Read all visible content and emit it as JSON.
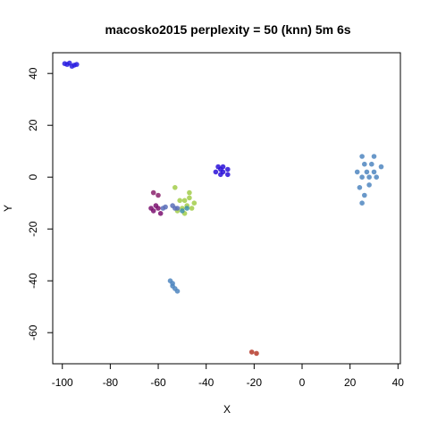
{
  "chart_data": {
    "type": "scatter",
    "title": "macosko2015 perplexity = 50 (knn) 5m 6s",
    "xlabel": "X",
    "ylabel": "Y",
    "xlim": [
      -104,
      41
    ],
    "ylim": [
      -72,
      48
    ],
    "x_ticks": [
      -100,
      -80,
      -60,
      -40,
      -20,
      0,
      20,
      40
    ],
    "y_ticks": [
      40,
      20,
      0,
      -20,
      -40,
      -60
    ],
    "x_tick_labels": [
      "-100",
      "-80",
      "-60",
      "-40",
      "-20",
      "0",
      "20",
      "40"
    ],
    "y_tick_labels": [
      "40",
      "20",
      "0",
      "-20",
      "-40",
      "-60"
    ],
    "grid": false,
    "legend": "none",
    "clusters": [
      {
        "color": "#4f86c0",
        "points": [
          [
            25,
            8
          ],
          [
            30,
            8
          ],
          [
            33,
            4
          ],
          [
            31,
            0
          ],
          [
            28,
            -3
          ],
          [
            26,
            -7
          ],
          [
            25,
            -10
          ],
          [
            24,
            -4
          ],
          [
            23,
            2
          ],
          [
            27,
            2
          ],
          [
            29,
            5
          ],
          [
            26,
            5
          ],
          [
            30,
            2
          ],
          [
            28,
            0
          ],
          [
            25,
            0
          ]
        ]
      },
      {
        "color": "#2a1ee0",
        "points": [
          [
            -97,
            44
          ],
          [
            -98,
            43.5
          ],
          [
            -95,
            43.2
          ],
          [
            -96,
            42.8
          ],
          [
            -99,
            43.8
          ],
          [
            -94,
            43.5
          ]
        ]
      },
      {
        "color": "#2a10d8",
        "points": [
          [
            -35,
            4
          ],
          [
            -33,
            4
          ],
          [
            -31,
            3
          ],
          [
            -31,
            1
          ],
          [
            -34,
            1
          ],
          [
            -36,
            2
          ],
          [
            -33,
            2
          ],
          [
            -34,
            3
          ]
        ]
      },
      {
        "color": "#a2cc4a",
        "points": [
          [
            -53,
            -4
          ],
          [
            -51,
            -9
          ],
          [
            -49,
            -9
          ],
          [
            -47,
            -8
          ],
          [
            -45,
            -10
          ],
          [
            -48,
            -11
          ],
          [
            -50,
            -12
          ],
          [
            -52,
            -13
          ],
          [
            -49,
            -14
          ],
          [
            -46,
            -12
          ],
          [
            -47,
            -6
          ]
        ]
      },
      {
        "color": "#7b1170",
        "points": [
          [
            -62,
            -13
          ],
          [
            -60,
            -12
          ],
          [
            -59,
            -14
          ],
          [
            -61,
            -11
          ],
          [
            -63,
            -12
          ]
        ]
      },
      {
        "color": "#8a226c",
        "points": [
          [
            -62,
            -6
          ],
          [
            -60,
            -7
          ]
        ]
      },
      {
        "color": "#5a6fb8",
        "points": [
          [
            -54,
            -11
          ],
          [
            -53,
            -12
          ],
          [
            -52,
            -12
          ],
          [
            -58,
            -12
          ],
          [
            -57,
            -11.5
          ]
        ]
      },
      {
        "color": "#3d8fa8",
        "points": [
          [
            -50,
            -13
          ],
          [
            -48,
            -12
          ]
        ]
      },
      {
        "color": "#4f86c0",
        "points": [
          [
            -55,
            -40
          ],
          [
            -54,
            -41
          ],
          [
            -53,
            -43
          ],
          [
            -52,
            -44
          ],
          [
            -54,
            -42
          ]
        ]
      },
      {
        "color": "#b5392a",
        "points": [
          [
            -21,
            -67.5
          ],
          [
            -19,
            -68
          ]
        ]
      }
    ]
  }
}
